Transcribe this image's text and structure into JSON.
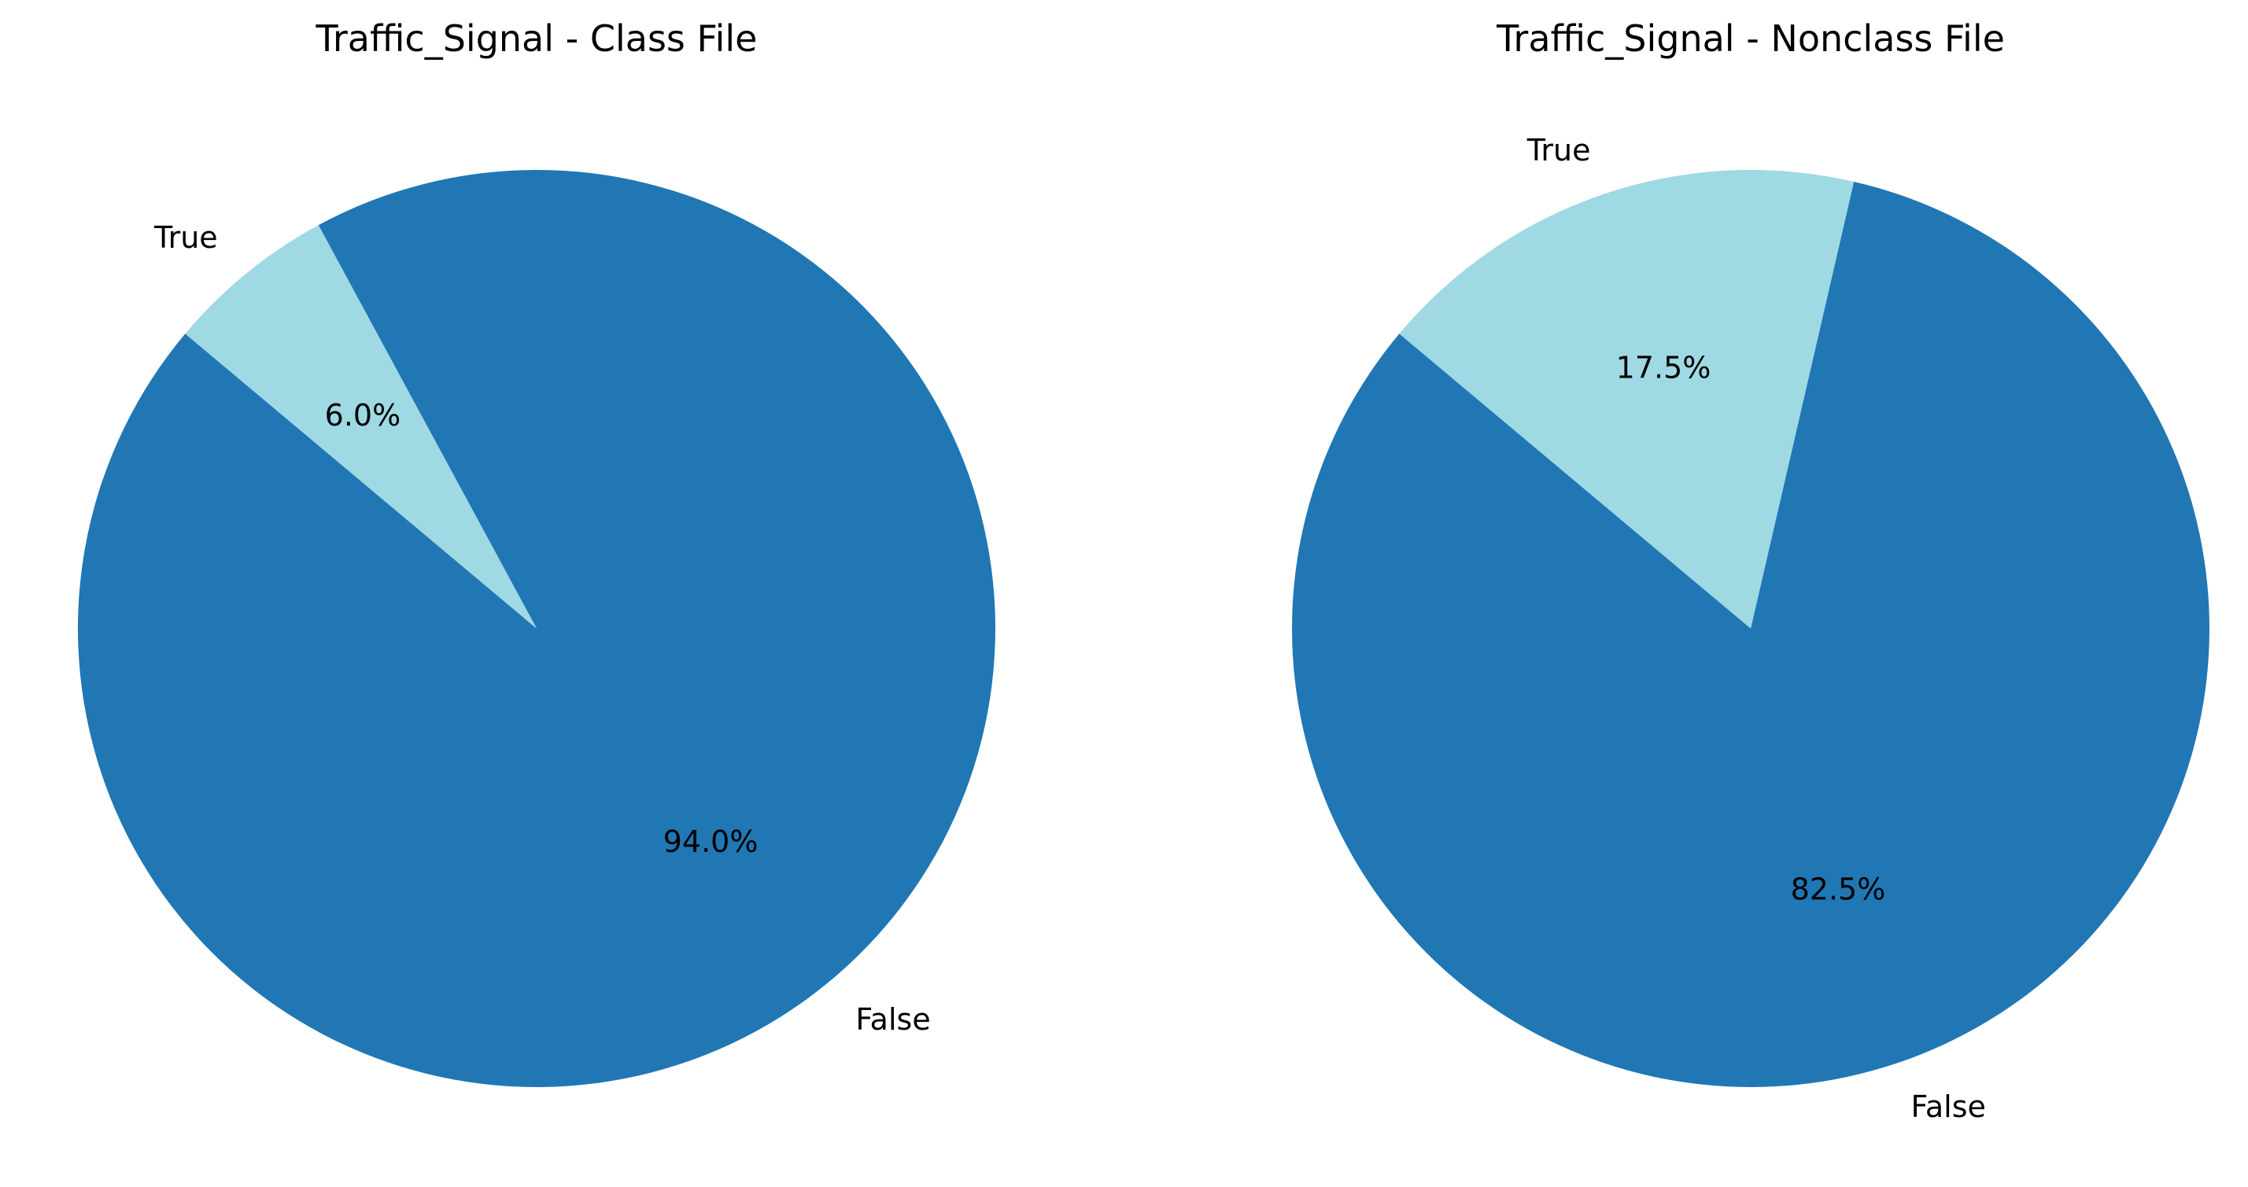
{
  "chart_data": [
    {
      "type": "pie",
      "title": "Traffic_Signal - Class File",
      "slices": [
        {
          "label": "False",
          "value": 94.0,
          "percent_label": "94.0%",
          "color": "#2077b4"
        },
        {
          "label": "True",
          "value": 6.0,
          "percent_label": "6.0%",
          "color": "#9fd9e4"
        }
      ]
    },
    {
      "type": "pie",
      "title": "Traffic_Signal - Nonclass File",
      "slices": [
        {
          "label": "False",
          "value": 82.5,
          "percent_label": "82.5%",
          "color": "#2077b4"
        },
        {
          "label": "True",
          "value": 17.5,
          "percent_label": "17.5%",
          "color": "#9fd9e4"
        }
      ]
    }
  ]
}
